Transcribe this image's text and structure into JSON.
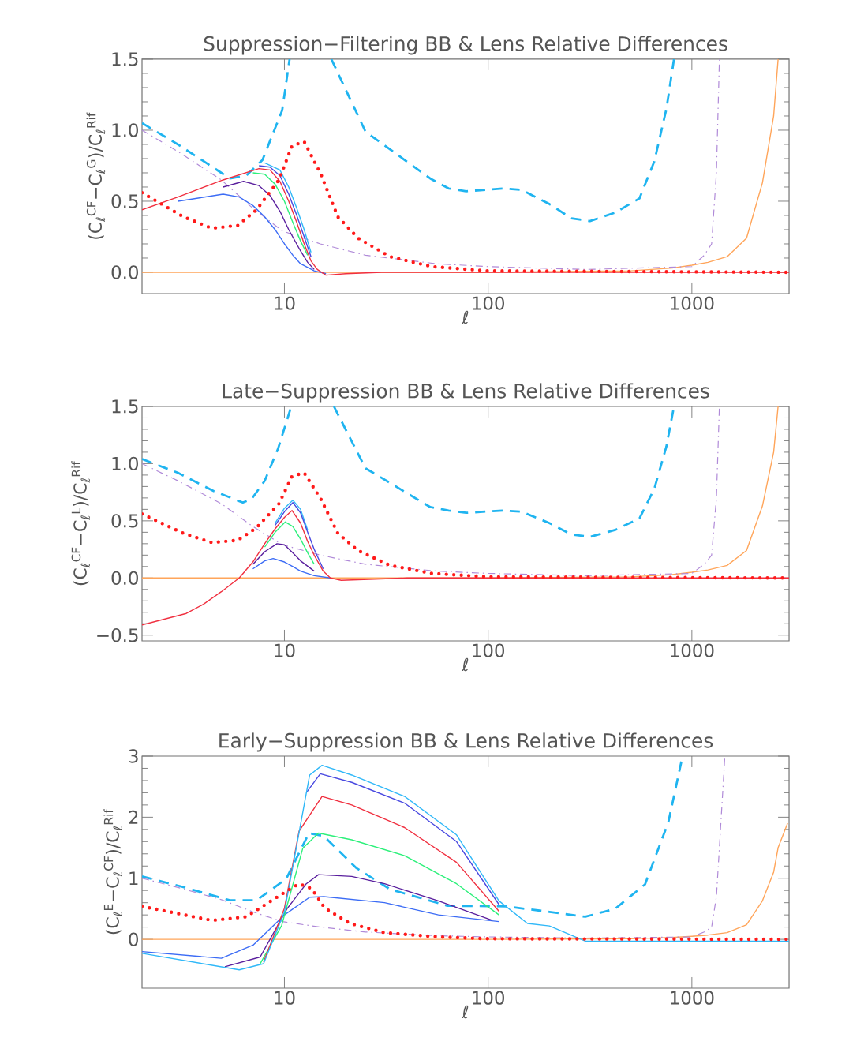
{
  "chart_data": [
    {
      "type": "line",
      "title": "Suppression−Filtering BB & Lens Relative Differences",
      "xlabel": "ℓ",
      "ylabel": "(C$_{ℓ}$$^{CF}$−C$_{ℓ}$$^{G}$)/C$_{ℓ}$$^{Rif}$",
      "log": "x",
      "xlim": [
        2,
        3000
      ],
      "xticks": [
        10,
        100,
        1000
      ],
      "ylim": [
        -0.15,
        1.5
      ],
      "yticks": [
        {
          "value": 0,
          "label": "0.0"
        },
        {
          "value": 0.5,
          "label": "0.5"
        },
        {
          "value": 1,
          "label": "1.0"
        },
        {
          "value": 1.5,
          "label": "1.5"
        }
      ],
      "series": [
        {
          "color": "#ffa55a",
          "line_style": "solid",
          "x": [
            2,
            100,
            500,
            800,
            1000,
            1200,
            1490,
            1855,
            2220,
            2520,
            2650
          ],
          "values": [
            0,
            0,
            0.01,
            0.03,
            0.05,
            0.07,
            0.11,
            0.24,
            0.63,
            1.1,
            1.5
          ]
        },
        {
          "color": "#1fb4f0",
          "line_style": "dashed",
          "x": [
            2,
            3,
            4.9,
            5.4,
            6.5,
            7.8,
            9.75,
            10.6,
            14,
            17,
            25,
            52,
            64,
            78,
            118,
            146,
            200,
            256,
            316,
            420,
            553,
            654,
            750,
            817
          ],
          "values": [
            1.05,
            0.9,
            0.7,
            0.66,
            0.68,
            0.79,
            1.14,
            1.5,
            null,
            1.5,
            0.99,
            0.66,
            0.59,
            0.57,
            0.59,
            0.58,
            0.48,
            0.38,
            0.36,
            0.42,
            0.52,
            0.78,
            1.15,
            1.5
          ]
        },
        {
          "color": "#b08ad8",
          "line_style": "dashdot",
          "x": [
            2,
            3,
            4.9,
            7,
            9.8,
            15,
            25,
            56,
            100,
            300,
            1000,
            1150,
            1250,
            1320,
            1365
          ],
          "values": [
            1.0,
            0.85,
            0.65,
            0.45,
            0.29,
            0.2,
            0.12,
            0.06,
            0.04,
            0.02,
            0.04,
            0.12,
            0.2,
            0.7,
            1.5
          ]
        },
        {
          "color": "#3c6cf5",
          "line_style": "solid",
          "x": [
            3,
            5,
            6,
            7,
            8,
            9,
            10,
            11,
            12,
            14,
            16
          ],
          "values": [
            0.5,
            0.55,
            0.53,
            0.47,
            0.39,
            0.3,
            0.2,
            0.12,
            0.06,
            0.01,
            -0.01
          ]
        },
        {
          "color": "#5a1f9e",
          "line_style": "solid",
          "x": [
            5,
            6.3,
            7.5,
            8.5,
            9.5,
            10.5,
            12,
            13,
            14
          ],
          "values": [
            0.6,
            0.64,
            0.61,
            0.54,
            0.43,
            0.3,
            0.15,
            0.07,
            0.02
          ]
        },
        {
          "color": "#2cf07a",
          "line_style": "solid",
          "x": [
            7,
            8,
            9,
            10,
            11,
            12,
            13
          ],
          "values": [
            0.7,
            0.69,
            0.62,
            0.5,
            0.35,
            0.22,
            0.12
          ]
        },
        {
          "color": "#30b8f8",
          "line_style": "solid",
          "x": [
            8,
            9.5,
            10.5,
            11.5,
            12.5,
            13.5
          ],
          "values": [
            0.77,
            0.72,
            0.6,
            0.45,
            0.3,
            0.14
          ]
        },
        {
          "color": "#4848e0",
          "line_style": "solid",
          "x": [
            7.5,
            8.5,
            9.5,
            10.5,
            11.5,
            12.5,
            13.5
          ],
          "values": [
            0.75,
            0.74,
            0.68,
            0.55,
            0.4,
            0.25,
            0.11
          ]
        },
        {
          "color": "#f03040",
          "line_style": "solid",
          "x": [
            2,
            3,
            5,
            7.5,
            8.5,
            9.5,
            10.5,
            11.5,
            12.5,
            13.5,
            14.5,
            16,
            20,
            30,
            3000
          ],
          "values": [
            0.44,
            0.53,
            0.65,
            0.73,
            0.72,
            0.64,
            0.5,
            0.35,
            0.2,
            0.08,
            0.02,
            -0.02,
            -0.01,
            0,
            0
          ]
        },
        {
          "color": "#ff1a1a",
          "line_style": "dotted",
          "x": [
            2,
            3.2,
            4.4,
            5.9,
            7.3,
            9.4,
            10.9,
            12.5,
            15.1,
            18.3,
            23,
            33,
            53,
            100,
            3000
          ],
          "values": [
            0.56,
            0.39,
            0.31,
            0.33,
            0.44,
            0.65,
            0.89,
            0.92,
            0.69,
            0.39,
            0.24,
            0.11,
            0.04,
            0.01,
            0
          ]
        }
      ]
    },
    {
      "type": "line",
      "title": "Late−Suppression BB & Lens Relative Differences",
      "xlabel": "ℓ",
      "ylabel": "(C$_{ℓ}$$^{CF}$−C$_{ℓ}$$^{L}$)/C$_{ℓ}$$^{Rif}$",
      "log": "x",
      "xlim": [
        2,
        3000
      ],
      "xticks": [
        10,
        100,
        1000
      ],
      "ylim": [
        -0.55,
        1.5
      ],
      "yticks": [
        {
          "value": -0.5,
          "label": "−0.5"
        },
        {
          "value": 0,
          "label": "0.0"
        },
        {
          "value": 0.5,
          "label": "0.5"
        },
        {
          "value": 1,
          "label": "1.0"
        },
        {
          "value": 1.5,
          "label": "1.5"
        }
      ],
      "series": [
        {
          "color": "#ffa55a",
          "line_style": "solid",
          "x": [
            2,
            100,
            500,
            800,
            1000,
            1200,
            1490,
            1855,
            2220,
            2520,
            2650
          ],
          "values": [
            0,
            0,
            0.01,
            0.03,
            0.05,
            0.07,
            0.11,
            0.24,
            0.63,
            1.1,
            1.5
          ]
        },
        {
          "color": "#1fb4f0",
          "line_style": "dashed",
          "x": [
            2,
            3,
            4.5,
            6.25,
            6.9,
            8,
            9.3,
            10.8,
            14,
            17.5,
            25,
            52,
            64,
            78,
            118,
            146,
            200,
            256,
            316,
            420,
            553,
            654,
            750,
            817
          ],
          "values": [
            1.04,
            0.92,
            0.76,
            0.66,
            0.69,
            0.85,
            1.13,
            1.5,
            null,
            1.5,
            0.96,
            0.62,
            0.59,
            0.57,
            0.59,
            0.58,
            0.48,
            0.38,
            0.36,
            0.42,
            0.52,
            0.78,
            1.15,
            1.5
          ]
        },
        {
          "color": "#b08ad8",
          "line_style": "dashdot",
          "x": [
            2,
            3,
            4.9,
            7,
            9.8,
            15,
            25,
            56,
            100,
            300,
            1000,
            1150,
            1250,
            1320,
            1365
          ],
          "values": [
            1.0,
            0.85,
            0.65,
            0.45,
            0.29,
            0.2,
            0.12,
            0.06,
            0.04,
            0.02,
            0.04,
            0.12,
            0.2,
            0.7,
            1.5
          ]
        },
        {
          "color": "#3c6cf5",
          "line_style": "solid",
          "x": [
            7,
            8,
            8.8,
            10,
            11,
            12,
            14,
            16.8
          ],
          "values": [
            0.08,
            0.15,
            0.17,
            0.14,
            0.1,
            0.06,
            0.02,
            0
          ]
        },
        {
          "color": "#5a1f9e",
          "line_style": "solid",
          "x": [
            7,
            8,
            9.2,
            10,
            11,
            12,
            14
          ],
          "values": [
            0.12,
            0.23,
            0.3,
            0.29,
            0.22,
            0.15,
            0.06
          ]
        },
        {
          "color": "#2cf07a",
          "line_style": "solid",
          "x": [
            8,
            9,
            10.1,
            11,
            12,
            13,
            14
          ],
          "values": [
            0.27,
            0.4,
            0.49,
            0.45,
            0.34,
            0.22,
            0.12
          ]
        },
        {
          "color": "#30b8f8",
          "line_style": "solid",
          "x": [
            9,
            10,
            11,
            12,
            13
          ],
          "values": [
            0.48,
            0.61,
            0.68,
            0.6,
            0.42
          ]
        },
        {
          "color": "#4848e0",
          "line_style": "solid",
          "x": [
            9,
            10,
            11,
            12,
            13,
            14,
            15.5
          ],
          "values": [
            0.46,
            0.58,
            0.66,
            0.57,
            0.4,
            0.25,
            0.08
          ]
        },
        {
          "color": "#f03040",
          "line_style": "solid",
          "x": [
            2,
            3.3,
            4,
            4.9,
            6,
            7,
            8,
            9,
            10,
            10.9,
            12,
            13,
            14,
            15.5,
            16.8,
            19,
            40,
            3000
          ],
          "values": [
            -0.41,
            -0.31,
            -0.23,
            -0.12,
            0,
            0.14,
            0.3,
            0.43,
            0.53,
            0.59,
            0.48,
            0.32,
            0.2,
            0.06,
            0,
            -0.02,
            0,
            0
          ]
        },
        {
          "color": "#ff1a1a",
          "line_style": "dotted",
          "x": [
            2,
            3.2,
            4.4,
            5.9,
            7.3,
            9.4,
            10.9,
            12.5,
            15.1,
            18.3,
            23,
            33,
            53,
            100,
            3000
          ],
          "values": [
            0.56,
            0.39,
            0.31,
            0.33,
            0.44,
            0.65,
            0.89,
            0.92,
            0.69,
            0.39,
            0.24,
            0.11,
            0.04,
            0.01,
            0
          ]
        }
      ]
    },
    {
      "type": "line",
      "title": "Early−Suppression BB & Lens Relative Differences",
      "xlabel": "ℓ",
      "ylabel": "(C$_{ℓ}$$^{E}$−C$_{ℓ}$$^{CF}$)/C$_{ℓ}$$^{Rif}$",
      "log": "x",
      "xlim": [
        2,
        3000
      ],
      "xticks": [
        10,
        100,
        1000
      ],
      "ylim": [
        -0.8,
        3
      ],
      "yticks": [
        0,
        1,
        2,
        3
      ],
      "series": [
        {
          "color": "#ffa55a",
          "line_style": "solid",
          "x": [
            2,
            100,
            500,
            800,
            1000,
            1200,
            1490,
            1855,
            2220,
            2520,
            2650,
            2950
          ],
          "values": [
            0,
            0,
            0.01,
            0.03,
            0.05,
            0.07,
            0.11,
            0.24,
            0.63,
            1.1,
            1.5,
            1.9
          ]
        },
        {
          "color": "#1fb4f0",
          "line_style": "dashed",
          "x": [
            2,
            3,
            5.4,
            7.3,
            10.2,
            13.2,
            15.6,
            22.5,
            33,
            63,
            122,
            200,
            300,
            420,
            589,
            767,
            900
          ],
          "values": [
            1.03,
            0.88,
            0.64,
            0.64,
            0.99,
            1.74,
            1.69,
            1.17,
            0.82,
            0.55,
            0.54,
            0.45,
            0.37,
            0.5,
            0.9,
            1.92,
            3.0
          ]
        },
        {
          "color": "#b08ad8",
          "line_style": "dashdot",
          "x": [
            2,
            3,
            4.9,
            7,
            9.8,
            15,
            25,
            56,
            100,
            300,
            1000,
            1150,
            1250,
            1320,
            1365,
            1452
          ],
          "values": [
            1.0,
            0.85,
            0.65,
            0.45,
            0.29,
            0.2,
            0.12,
            0.06,
            0.04,
            0.02,
            0.04,
            0.12,
            0.2,
            0.7,
            1.5,
            3.0
          ]
        },
        {
          "color": "#3c6cf5",
          "line_style": "solid",
          "x": [
            2,
            4.9,
            7.05,
            10,
            13.3,
            15.6,
            31,
            57,
            113
          ],
          "values": [
            -0.2,
            -0.31,
            -0.09,
            0.4,
            0.69,
            0.7,
            0.6,
            0.4,
            0.29
          ]
        },
        {
          "color": "#5a1f9e",
          "line_style": "solid",
          "x": [
            5.1,
            7.6,
            10.3,
            12.8,
            14.7,
            21.4,
            31,
            57,
            105
          ],
          "values": [
            -0.45,
            -0.29,
            0.5,
            0.91,
            1.06,
            1.03,
            0.91,
            0.63,
            0.31
          ]
        },
        {
          "color": "#2cf07a",
          "line_style": "solid",
          "x": [
            7.6,
            9.7,
            12.3,
            14.7,
            21.4,
            38.9,
            70,
            113
          ],
          "values": [
            -0.4,
            0.23,
            1.49,
            1.74,
            1.63,
            1.37,
            0.91,
            0.4
          ]
        },
        {
          "color": "#f03040",
          "line_style": "solid",
          "x": [
            7.9,
            10,
            11.8,
            15.3,
            21.4,
            38.9,
            70,
            113
          ],
          "values": [
            -0.37,
            0.51,
            1.77,
            2.34,
            2.2,
            1.83,
            1.26,
            0.46
          ]
        },
        {
          "color": "#4848e0",
          "line_style": "solid",
          "x": [
            12.8,
            15,
            21.4,
            38.9,
            70,
            113
          ],
          "values": [
            2.4,
            2.71,
            2.57,
            2.23,
            1.6,
            0.57
          ]
        },
        {
          "color": "#30b8f8",
          "line_style": "solid",
          "x": [
            2,
            6,
            7.9,
            10,
            13.3,
            15.3,
            21.4,
            38.9,
            70,
            113,
            156,
            200,
            300,
            3000
          ],
          "values": [
            -0.23,
            -0.5,
            -0.4,
            0.45,
            2.69,
            2.85,
            2.69,
            2.34,
            1.71,
            0.63,
            0.26,
            0.22,
            -0.03,
            -0.03
          ]
        },
        {
          "color": "#ff1a1a",
          "line_style": "dotted",
          "x": [
            2,
            4.4,
            6.5,
            9.7,
            11.8,
            13.6,
            15.8,
            21,
            31,
            57,
            100,
            3000
          ],
          "values": [
            0.54,
            0.31,
            0.37,
            0.74,
            0.91,
            0.83,
            0.51,
            0.26,
            0.11,
            0.04,
            0.01,
            0
          ]
        }
      ]
    }
  ]
}
